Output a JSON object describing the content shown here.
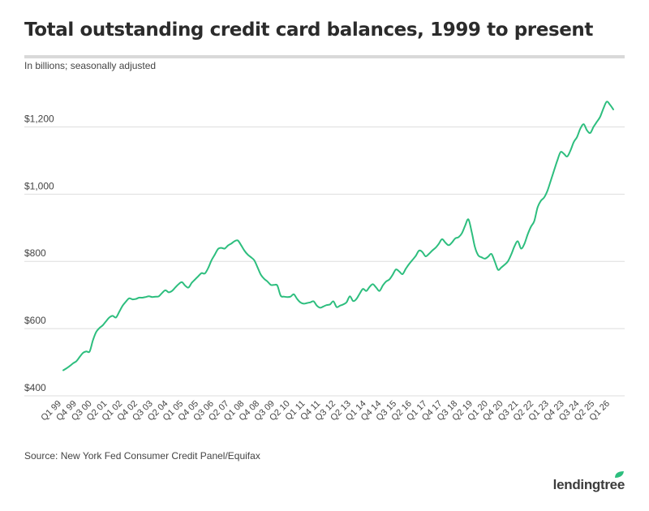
{
  "header": {
    "title": "Total outstanding credit card balances, 1999 to present",
    "subtitle": "In billions; seasonally adjusted"
  },
  "footer": {
    "source": "Source: New York Fed Consumer Credit Panel/Equifax",
    "brand": "lendingtree"
  },
  "colors": {
    "line": "#2dbe7e",
    "grid": "#dedede",
    "brand_leaf": "#2dbe7e"
  },
  "chart_data": {
    "type": "line",
    "title": "Total outstanding credit card balances, 1999 to present",
    "subtitle": "In billions; seasonally adjusted",
    "ylabel": "",
    "xlabel": "",
    "ylim": [
      400,
      1300
    ],
    "y_ticks": [
      400,
      600,
      800,
      1000,
      1200
    ],
    "y_tick_labels": [
      "$400",
      "$600",
      "$800",
      "$1,000",
      "$1,200"
    ],
    "grid": true,
    "x_tick_labels": [
      "Q1 99",
      "Q4 99",
      "Q3 00",
      "Q2 01",
      "Q1 02",
      "Q4 02",
      "Q3 03",
      "Q2 04",
      "Q1 05",
      "Q4 05",
      "Q3 06",
      "Q2 07",
      "Q1 08",
      "Q4 08",
      "Q3 09",
      "Q2 10",
      "Q1 11",
      "Q4 11",
      "Q3 12",
      "Q2 13",
      "Q1 14",
      "Q4 14",
      "Q3 15",
      "Q2 16",
      "Q1 17",
      "Q4 17",
      "Q3 18",
      "Q2 19",
      "Q1 20",
      "Q4 20",
      "Q3 21",
      "Q2 22",
      "Q1 23",
      "Q4 23",
      "Q3 24",
      "Q2 25",
      "Q1 26"
    ],
    "series": [
      {
        "values": [
          476,
          482,
          489,
          497,
          503,
          516,
          528,
          532,
          532,
          565,
          590,
          602,
          610,
          622,
          633,
          638,
          633,
          650,
          668,
          680,
          690,
          687,
          688,
          692,
          692,
          694,
          696,
          694,
          695,
          696,
          706,
          714,
          708,
          712,
          722,
          732,
          738,
          728,
          722,
          736,
          746,
          756,
          765,
          764,
          780,
          803,
          820,
          837,
          840,
          838,
          847,
          853,
          860,
          862,
          848,
          832,
          820,
          812,
          803,
          782,
          760,
          748,
          740,
          730,
          730,
          728,
          698,
          695,
          694,
          695,
          702,
          688,
          678,
          674,
          676,
          678,
          681,
          668,
          662,
          666,
          670,
          672,
          681,
          664,
          668,
          672,
          678,
          696,
          682,
          688,
          704,
          718,
          712,
          724,
          732,
          722,
          712,
          728,
          740,
          746,
          760,
          776,
          770,
          762,
          778,
          792,
          804,
          816,
          832,
          828,
          815,
          822,
          832,
          840,
          852,
          866,
          856,
          848,
          856,
          868,
          872,
          883,
          906,
          925,
          888,
          842,
          818,
          812,
          808,
          814,
          822,
          800,
          775,
          782,
          790,
          800,
          820,
          845,
          860,
          838,
          852,
          880,
          903,
          920,
          960,
          980,
          990,
          1010,
          1040,
          1070,
          1100,
          1125,
          1120,
          1112,
          1130,
          1155,
          1170,
          1195,
          1208,
          1190,
          1182,
          1200,
          1215,
          1230,
          1255,
          1275,
          1266,
          1252
        ]
      }
    ]
  }
}
